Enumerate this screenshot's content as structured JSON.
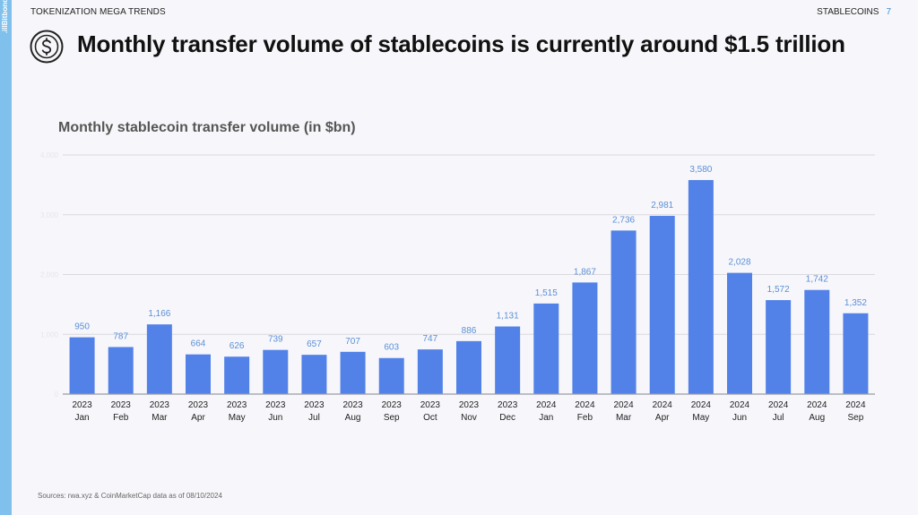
{
  "header": {
    "left_label": "TOKENIZATION MEGA TRENDS",
    "right_label": "STABLECOINS",
    "page_number": "7",
    "brand": ".illBitbond"
  },
  "title": "Monthly transfer volume of stablecoins is currently around $1.5 trillion",
  "icon": "dollar-coin-icon",
  "footnote": "Sources: rwa.xyz & CoinMarketCap data as of 08/10/2024",
  "colors": {
    "bar": "#5282e8",
    "label": "#5b8fd6",
    "strip": "#7fc1ec"
  },
  "chart_data": {
    "type": "bar",
    "title": "Monthly stablecoin transfer volume (in $bn)",
    "categories": [
      "2023 Jan",
      "2023 Feb",
      "2023 Mar",
      "2023 Apr",
      "2023 May",
      "2023 Jun",
      "2023 Jul",
      "2023 Aug",
      "2023 Sep",
      "2023 Oct",
      "2023 Nov",
      "2023 Dec",
      "2024 Jan",
      "2024 Feb",
      "2024 Mar",
      "2024 Apr",
      "2024 May",
      "2024 Jun",
      "2024 Jul",
      "2024 Aug",
      "2024 Sep"
    ],
    "values": [
      950,
      787,
      1166,
      664,
      626,
      739,
      657,
      707,
      603,
      747,
      886,
      1131,
      1515,
      1867,
      2736,
      2981,
      3580,
      2028,
      1572,
      1742,
      1352
    ],
    "value_labels": [
      "950",
      "787",
      "1,166",
      "664",
      "626",
      "739",
      "657",
      "707",
      "603",
      "747",
      "886",
      "1,131",
      "1,515",
      "1,867",
      "2,736",
      "2,981",
      "3,580",
      "2,028",
      "1,572",
      "1,742",
      "1,352"
    ],
    "yticks": [
      0,
      1000,
      2000,
      3000,
      4000
    ],
    "ytick_labels": [
      "0",
      "1,000",
      "2,000",
      "3,000",
      "4,000"
    ],
    "ylim": [
      0,
      4000
    ],
    "grid": true,
    "legend": "none"
  }
}
